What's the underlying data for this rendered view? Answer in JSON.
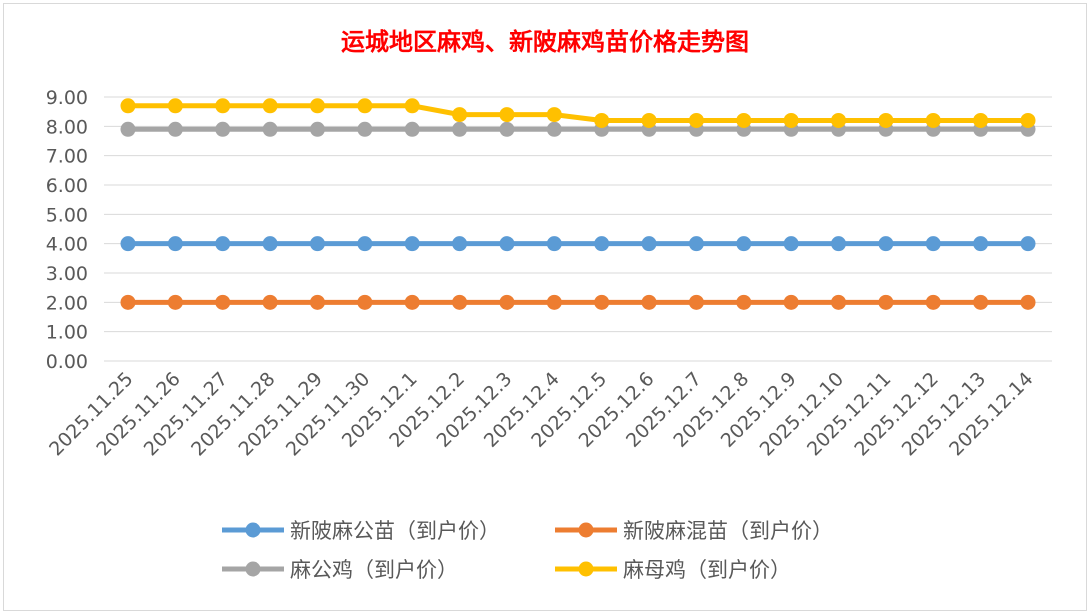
{
  "chart_data": {
    "type": "line",
    "title": "运城地区麻鸡、新陂麻鸡苗价格走势图",
    "title_color": "#ff0000",
    "categories": [
      "2025.11.25",
      "2025.11.26",
      "2025.11.27",
      "2025.11.28",
      "2025.11.29",
      "2025.11.30",
      "2025.12.1",
      "2025.12.2",
      "2025.12.3",
      "2025.12.4",
      "2025.12.5",
      "2025.12.6",
      "2025.12.7",
      "2025.12.8",
      "2025.12.9",
      "2025.12.10",
      "2025.12.11",
      "2025.12.12",
      "2025.12.13",
      "2025.12.14"
    ],
    "ylim": [
      0,
      9
    ],
    "yticks": [
      "0.00",
      "1.00",
      "2.00",
      "3.00",
      "4.00",
      "5.00",
      "6.00",
      "7.00",
      "8.00",
      "9.00"
    ],
    "grid": true,
    "legend_position": "bottom",
    "series": [
      {
        "name": "新陂麻公苗（到户价）",
        "color": "#5b9bd5",
        "values": [
          4,
          4,
          4,
          4,
          4,
          4,
          4,
          4,
          4,
          4,
          4,
          4,
          4,
          4,
          4,
          4,
          4,
          4,
          4,
          4
        ]
      },
      {
        "name": "新陂麻混苗（到户价）",
        "color": "#ed7d31",
        "values": [
          2,
          2,
          2,
          2,
          2,
          2,
          2,
          2,
          2,
          2,
          2,
          2,
          2,
          2,
          2,
          2,
          2,
          2,
          2,
          2
        ]
      },
      {
        "name": "麻公鸡（到户价）",
        "color": "#a5a5a5",
        "values": [
          7.9,
          7.9,
          7.9,
          7.9,
          7.9,
          7.9,
          7.9,
          7.9,
          7.9,
          7.9,
          7.9,
          7.9,
          7.9,
          7.9,
          7.9,
          7.9,
          7.9,
          7.9,
          7.9,
          7.9
        ]
      },
      {
        "name": "麻母鸡（到户价）",
        "color": "#ffc000",
        "values": [
          8.7,
          8.7,
          8.7,
          8.7,
          8.7,
          8.7,
          8.7,
          8.4,
          8.4,
          8.4,
          8.2,
          8.2,
          8.2,
          8.2,
          8.2,
          8.2,
          8.2,
          8.2,
          8.2,
          8.2
        ]
      }
    ]
  }
}
